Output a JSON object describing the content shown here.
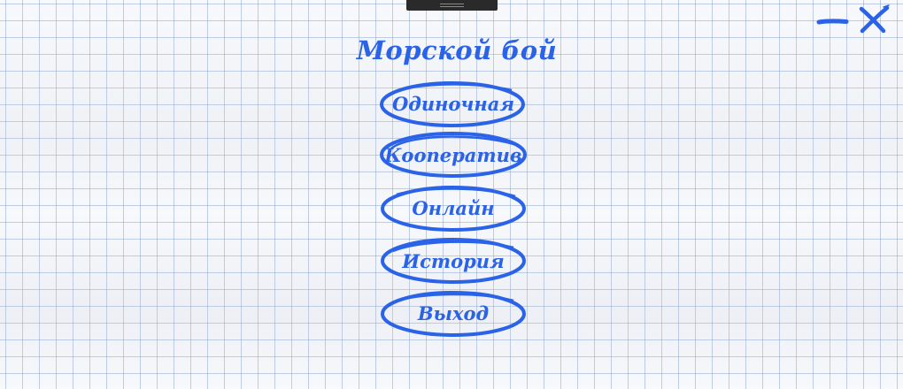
{
  "title": "Морской бой",
  "menu": [
    {
      "id": "single",
      "label": "Одиночная"
    },
    {
      "id": "coop",
      "label": "Кооператив"
    },
    {
      "id": "online",
      "label": "Онлайн"
    },
    {
      "id": "history",
      "label": "История"
    },
    {
      "id": "exit",
      "label": "Выход"
    }
  ],
  "window_controls": {
    "minimize_icon": "minus-icon",
    "close_icon": "close-icon"
  },
  "colors": {
    "ink": "#2b63e8",
    "grid": "#a7bbdb",
    "paper": "#f7f9fc",
    "handle": "#2a2a2a"
  }
}
